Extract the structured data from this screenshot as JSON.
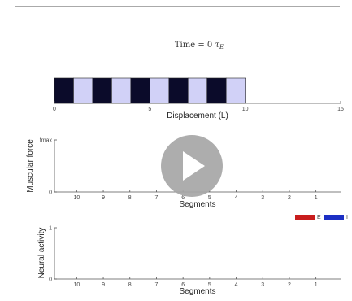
{
  "video": {
    "play_icon": "play-icon"
  },
  "title": {
    "prefix": "Time = 0 ",
    "symbol": "τ",
    "subscript": "E"
  },
  "colors": {
    "segment_dark": "#0b0b2a",
    "segment_light": "#d1d1f7",
    "excitatory": "#c81d1d",
    "inhibitory": "#1c2fc4",
    "overlay": "#a6a6a6"
  },
  "chart_data": [
    {
      "type": "bar",
      "name": "body-strip",
      "xlabel": "Displacement (L)",
      "xlim": [
        0,
        15
      ],
      "xticks": [
        "0",
        "5",
        "10",
        "15"
      ],
      "segments": [
        {
          "start": 0,
          "end": 1,
          "shade": "dark"
        },
        {
          "start": 1,
          "end": 2,
          "shade": "light"
        },
        {
          "start": 2,
          "end": 3,
          "shade": "dark"
        },
        {
          "start": 3,
          "end": 4,
          "shade": "light"
        },
        {
          "start": 4,
          "end": 5,
          "shade": "dark"
        },
        {
          "start": 5,
          "end": 6,
          "shade": "light"
        },
        {
          "start": 6,
          "end": 7,
          "shade": "dark"
        },
        {
          "start": 7,
          "end": 8,
          "shade": "light"
        },
        {
          "start": 8,
          "end": 9,
          "shade": "dark"
        },
        {
          "start": 9,
          "end": 10,
          "shade": "light"
        }
      ]
    },
    {
      "type": "bar",
      "name": "muscular-force",
      "ylabel": "Muscular force",
      "yticks": [
        "0",
        "fmax"
      ],
      "xlabel": "Segments",
      "categories": [
        "10",
        "9",
        "8",
        "7",
        "6",
        "5",
        "4",
        "3",
        "2",
        "1"
      ],
      "values": [
        0,
        0,
        0,
        0,
        0,
        0,
        0,
        0,
        0,
        0
      ]
    },
    {
      "type": "bar",
      "name": "neural-activity",
      "ylabel": "Neural activity",
      "yticks": [
        "0",
        "1"
      ],
      "xlabel": "Segments",
      "categories": [
        "10",
        "9",
        "8",
        "7",
        "6",
        "5",
        "4",
        "3",
        "2",
        "1"
      ],
      "series": [
        {
          "name": "E",
          "values": [
            0,
            0,
            0,
            0,
            0,
            0,
            0,
            0,
            0,
            0
          ]
        },
        {
          "name": "I",
          "values": [
            0,
            0,
            0,
            0,
            0,
            0,
            0,
            0,
            0,
            0
          ]
        }
      ],
      "legend": "top-right"
    }
  ]
}
